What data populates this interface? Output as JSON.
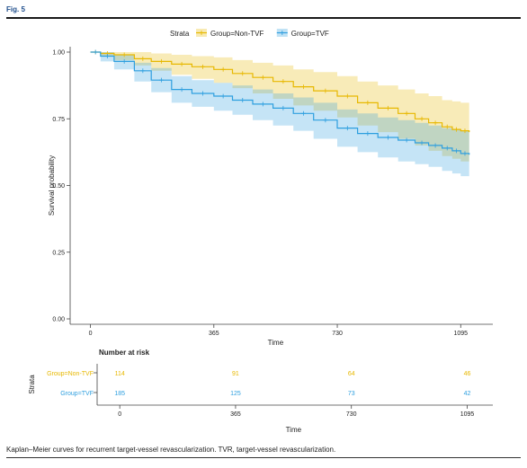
{
  "figure": {
    "label": "Fig. 5",
    "caption": "Kaplan–Meier curves for recurrent target-vessel revascularization. TVR, target-vessel revascularization."
  },
  "chart_data": {
    "type": "line",
    "title": "",
    "xlabel": "Time",
    "ylabel": "Survival probability",
    "xlim": [
      -60,
      1190
    ],
    "ylim": [
      0,
      1.0
    ],
    "x_ticks": [
      0,
      365,
      730,
      1095
    ],
    "y_ticks": [
      0.0,
      0.25,
      0.5,
      0.75,
      1.0
    ],
    "y_tick_labels": [
      "0.00",
      "0.25",
      "0.50",
      "0.75",
      "1.00"
    ],
    "legend": {
      "title": "Strata",
      "position": "top"
    },
    "colors": {
      "non_tvf": "#E7B800",
      "tvf": "#2E9FDF"
    },
    "series": [
      {
        "name": "Group=Non-TVF",
        "color": "#E7B800",
        "x": [
          0,
          30,
          70,
          130,
          180,
          240,
          300,
          365,
          420,
          480,
          540,
          600,
          660,
          730,
          790,
          850,
          910,
          960,
          1000,
          1040,
          1070,
          1095,
          1120
        ],
        "y": [
          1.0,
          0.995,
          0.99,
          0.975,
          0.965,
          0.955,
          0.945,
          0.935,
          0.92,
          0.905,
          0.89,
          0.87,
          0.855,
          0.835,
          0.81,
          0.79,
          0.77,
          0.75,
          0.735,
          0.72,
          0.71,
          0.705,
          0.7
        ],
        "ci_lower": [
          1.0,
          0.985,
          0.97,
          0.95,
          0.93,
          0.915,
          0.9,
          0.885,
          0.865,
          0.845,
          0.825,
          0.8,
          0.78,
          0.755,
          0.725,
          0.7,
          0.675,
          0.65,
          0.63,
          0.61,
          0.6,
          0.59,
          0.585
        ],
        "ci_upper": [
          1.0,
          1.0,
          1.0,
          1.0,
          0.995,
          0.99,
          0.985,
          0.98,
          0.97,
          0.96,
          0.95,
          0.935,
          0.925,
          0.91,
          0.89,
          0.875,
          0.86,
          0.845,
          0.835,
          0.82,
          0.815,
          0.81,
          0.81
        ]
      },
      {
        "name": "Group=TVF",
        "color": "#2E9FDF",
        "x": [
          0,
          30,
          70,
          130,
          180,
          240,
          300,
          365,
          420,
          480,
          540,
          600,
          660,
          730,
          790,
          850,
          910,
          960,
          1000,
          1040,
          1070,
          1095,
          1120
        ],
        "y": [
          1.0,
          0.985,
          0.965,
          0.93,
          0.895,
          0.86,
          0.845,
          0.835,
          0.82,
          0.805,
          0.79,
          0.77,
          0.745,
          0.715,
          0.695,
          0.68,
          0.67,
          0.66,
          0.65,
          0.64,
          0.63,
          0.62,
          0.615
        ],
        "ci_lower": [
          1.0,
          0.965,
          0.935,
          0.89,
          0.85,
          0.81,
          0.795,
          0.78,
          0.765,
          0.745,
          0.725,
          0.705,
          0.675,
          0.645,
          0.625,
          0.605,
          0.59,
          0.58,
          0.57,
          0.555,
          0.545,
          0.535,
          0.53
        ],
        "ci_upper": [
          1.0,
          1.0,
          0.99,
          0.96,
          0.94,
          0.91,
          0.895,
          0.885,
          0.875,
          0.86,
          0.845,
          0.83,
          0.81,
          0.785,
          0.77,
          0.755,
          0.745,
          0.735,
          0.725,
          0.715,
          0.71,
          0.705,
          0.7
        ]
      }
    ],
    "risk_table": {
      "title": "Number at risk",
      "strata_label": "Strata",
      "xlabel": "Time",
      "times": [
        0,
        365,
        730,
        1095
      ],
      "rows": [
        {
          "name": "Group=Non-TVF",
          "color": "#E7B800",
          "counts": [
            "114",
            "91",
            "64",
            "46"
          ]
        },
        {
          "name": "Group=TVF",
          "color": "#2E9FDF",
          "counts": [
            "185",
            "125",
            "73",
            "42"
          ]
        }
      ]
    }
  }
}
